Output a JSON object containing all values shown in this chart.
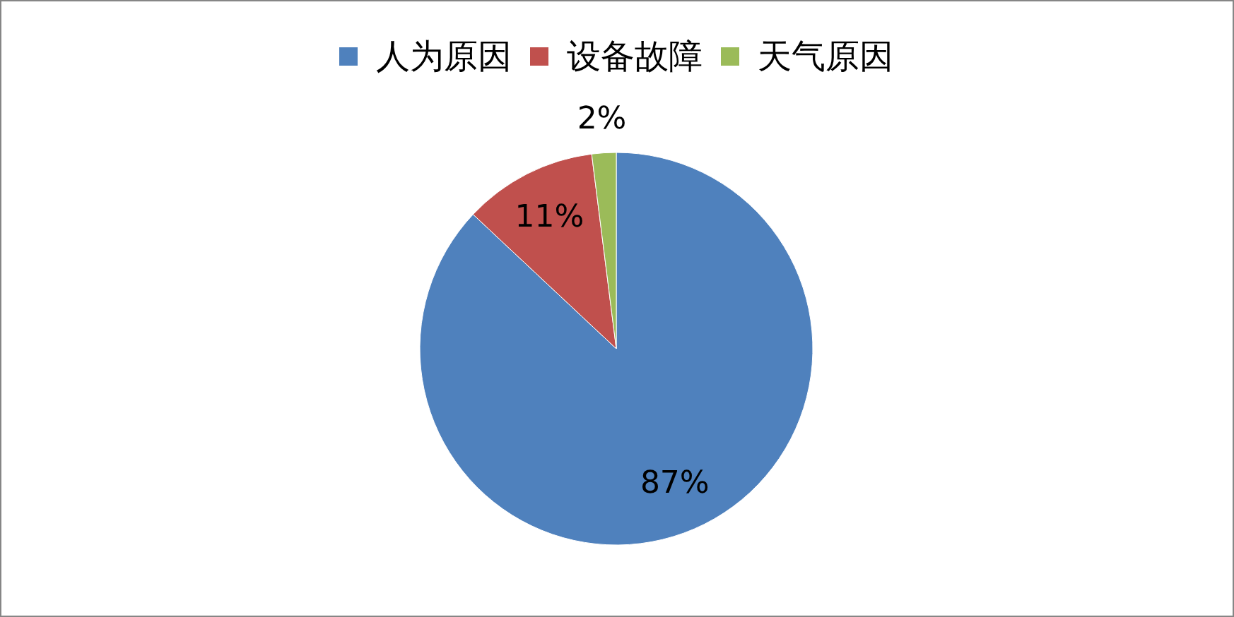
{
  "chart_data": {
    "type": "pie",
    "categories": [
      "人为原因",
      "设备故障",
      "天气原因"
    ],
    "values": [
      87,
      11,
      2
    ],
    "colors": [
      "#4f81bd",
      "#c0504d",
      "#9bbb59"
    ],
    "value_labels": [
      "87%",
      "11%",
      "2%"
    ],
    "legend": "top"
  }
}
